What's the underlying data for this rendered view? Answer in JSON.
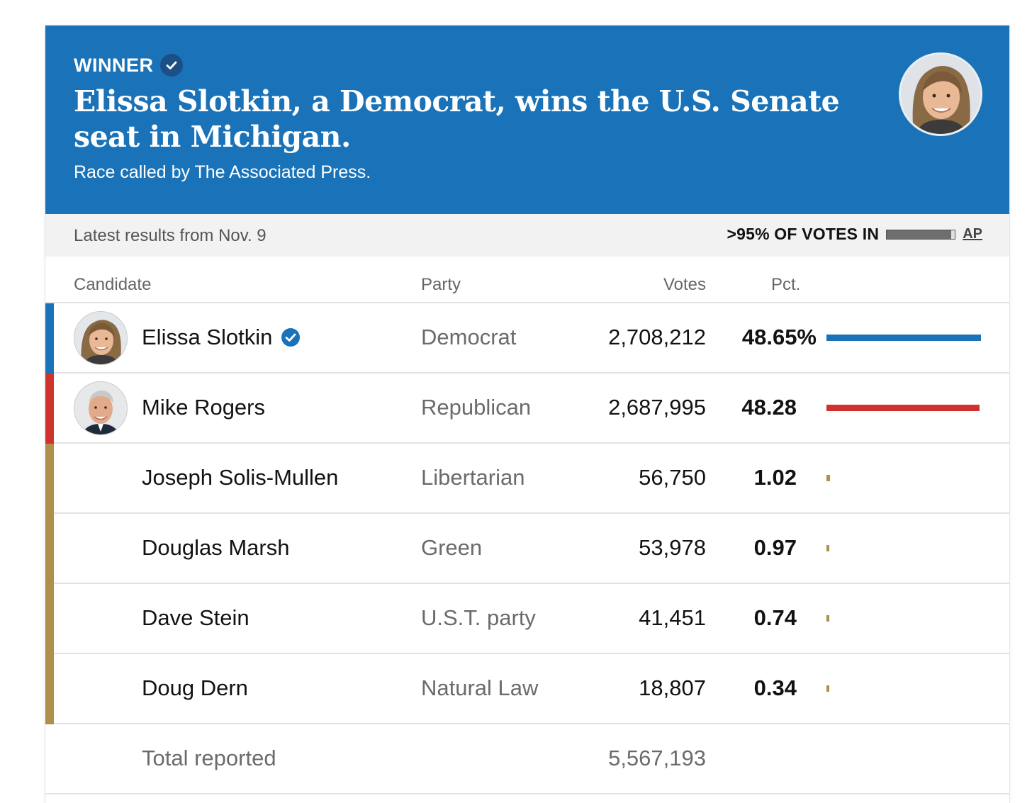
{
  "banner": {
    "winner_label": "WINNER",
    "headline": "Elissa Slotkin, a Democrat, wins the U.S. Senate seat in Michigan.",
    "called_by": "Race called by The Associated Press.",
    "background_color": "#1a73b8",
    "photo_icon": "candidate-photo"
  },
  "status": {
    "latest_results": "Latest results from Nov. 9",
    "votes_in": ">95% OF VOTES IN",
    "votes_in_fraction": 0.95,
    "source": "AP"
  },
  "columns": {
    "candidate": "Candidate",
    "party": "Party",
    "votes": "Votes",
    "pct": "Pct."
  },
  "candidates": [
    {
      "name": "Elissa Slotkin",
      "party": "Democrat",
      "votes": "2,708,212",
      "pct": "48.65%",
      "pct_value": 48.65,
      "color": "#1a73b8",
      "winner": true,
      "photo": true
    },
    {
      "name": "Mike Rogers",
      "party": "Republican",
      "votes": "2,687,995",
      "pct": "48.28",
      "pct_value": 48.28,
      "color": "#d0322d",
      "winner": false,
      "photo": true
    },
    {
      "name": "Joseph Solis-Mullen",
      "party": "Libertarian",
      "votes": "56,750",
      "pct": "1.02",
      "pct_value": 1.02,
      "color": "#b08e4b",
      "winner": false,
      "photo": false
    },
    {
      "name": "Douglas Marsh",
      "party": "Green",
      "votes": "53,978",
      "pct": "0.97",
      "pct_value": 0.97,
      "color": "#b08e4b",
      "winner": false,
      "photo": false
    },
    {
      "name": "Dave Stein",
      "party": "U.S.T. party",
      "votes": "41,451",
      "pct": "0.74",
      "pct_value": 0.74,
      "color": "#b08e4b",
      "winner": false,
      "photo": false
    },
    {
      "name": "Doug Dern",
      "party": "Natural Law",
      "votes": "18,807",
      "pct": "0.34",
      "pct_value": 0.34,
      "color": "#b08e4b",
      "winner": false,
      "photo": false
    }
  ],
  "total": {
    "label": "Total reported",
    "votes": "5,567,193"
  }
}
